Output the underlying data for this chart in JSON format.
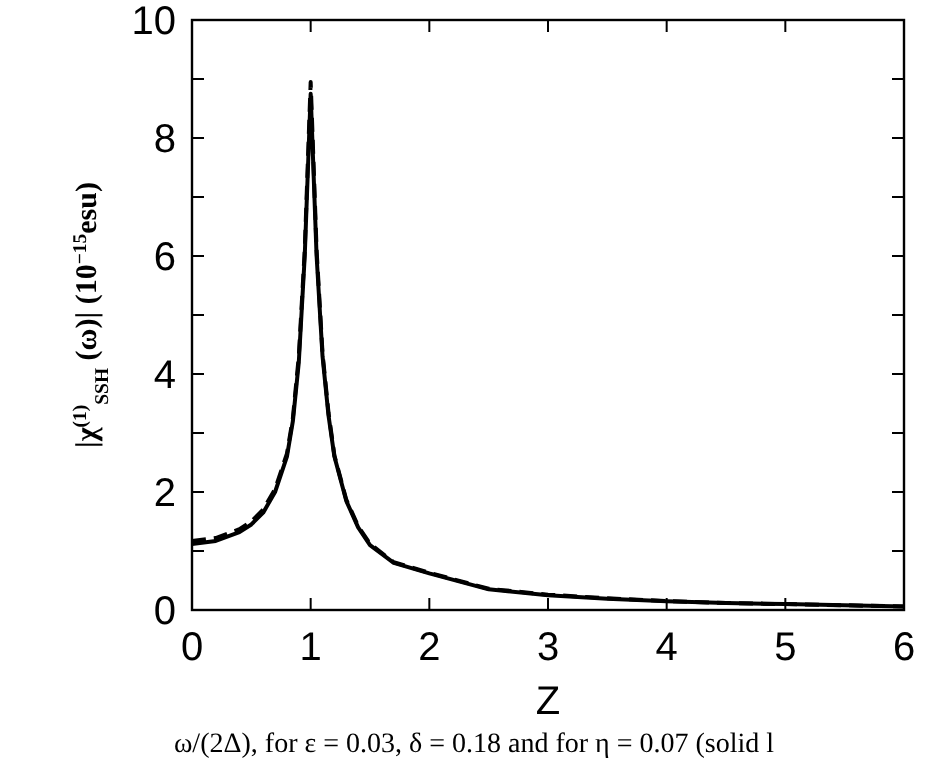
{
  "chart_data": {
    "type": "line",
    "xlabel": "Z",
    "ylabel": "|χ$^{(1)}$$_{SSH}$ (ω)| (10$^{−15}$esu)",
    "annotations": [
      "ω/(2Δ), for ε = 0.03, δ = 0.18 and for η = 0.07 (solid l"
    ],
    "xlim": [
      0,
      6
    ],
    "ylim": [
      0,
      10
    ],
    "xticks": [
      0,
      1,
      2,
      3,
      4,
      5,
      6
    ],
    "yticks": [
      0,
      {
        "value": 1,
        "label": null
      },
      2,
      {
        "value": 3,
        "label": null
      },
      4,
      {
        "value": 5,
        "label": null
      },
      6,
      {
        "value": 7,
        "label": null
      },
      8,
      {
        "value": 9,
        "label": null
      },
      10
    ],
    "series": [
      {
        "color": "#000000",
        "line_style": "dashed",
        "x": [
          0,
          0.2,
          0.4,
          0.5,
          0.6,
          0.7,
          0.8,
          0.85,
          0.9,
          0.95,
          1.0,
          1.05,
          1.1,
          1.15,
          1.2,
          1.3,
          1.4,
          1.5,
          1.7,
          2.0,
          2.5,
          3,
          3.5,
          4,
          4.5,
          5,
          5.5,
          6
        ],
        "values": [
          1.17,
          1.22,
          1.37,
          1.5,
          1.7,
          2.05,
          2.65,
          3.25,
          4.3,
          6.1,
          8.95,
          6.1,
          4.35,
          3.35,
          2.62,
          1.87,
          1.42,
          1.12,
          0.81,
          0.63,
          0.36,
          0.26,
          0.2,
          0.15,
          0.12,
          0.1,
          0.08,
          0.06
        ]
      },
      {
        "color": "#000000",
        "line_style": "solid",
        "x": [
          0,
          0.2,
          0.4,
          0.5,
          0.6,
          0.7,
          0.8,
          0.85,
          0.9,
          0.95,
          1.0,
          1.05,
          1.1,
          1.15,
          1.2,
          1.3,
          1.4,
          1.5,
          1.7,
          2.0,
          2.5,
          3,
          3.5,
          4,
          4.5,
          5,
          5.5,
          6
        ],
        "values": [
          1.12,
          1.17,
          1.32,
          1.45,
          1.65,
          2.0,
          2.6,
          3.2,
          4.2,
          6.0,
          8.75,
          6.0,
          4.3,
          3.3,
          2.6,
          1.85,
          1.4,
          1.1,
          0.8,
          0.62,
          0.35,
          0.25,
          0.19,
          0.15,
          0.12,
          0.1,
          0.08,
          0.06
        ]
      }
    ]
  }
}
